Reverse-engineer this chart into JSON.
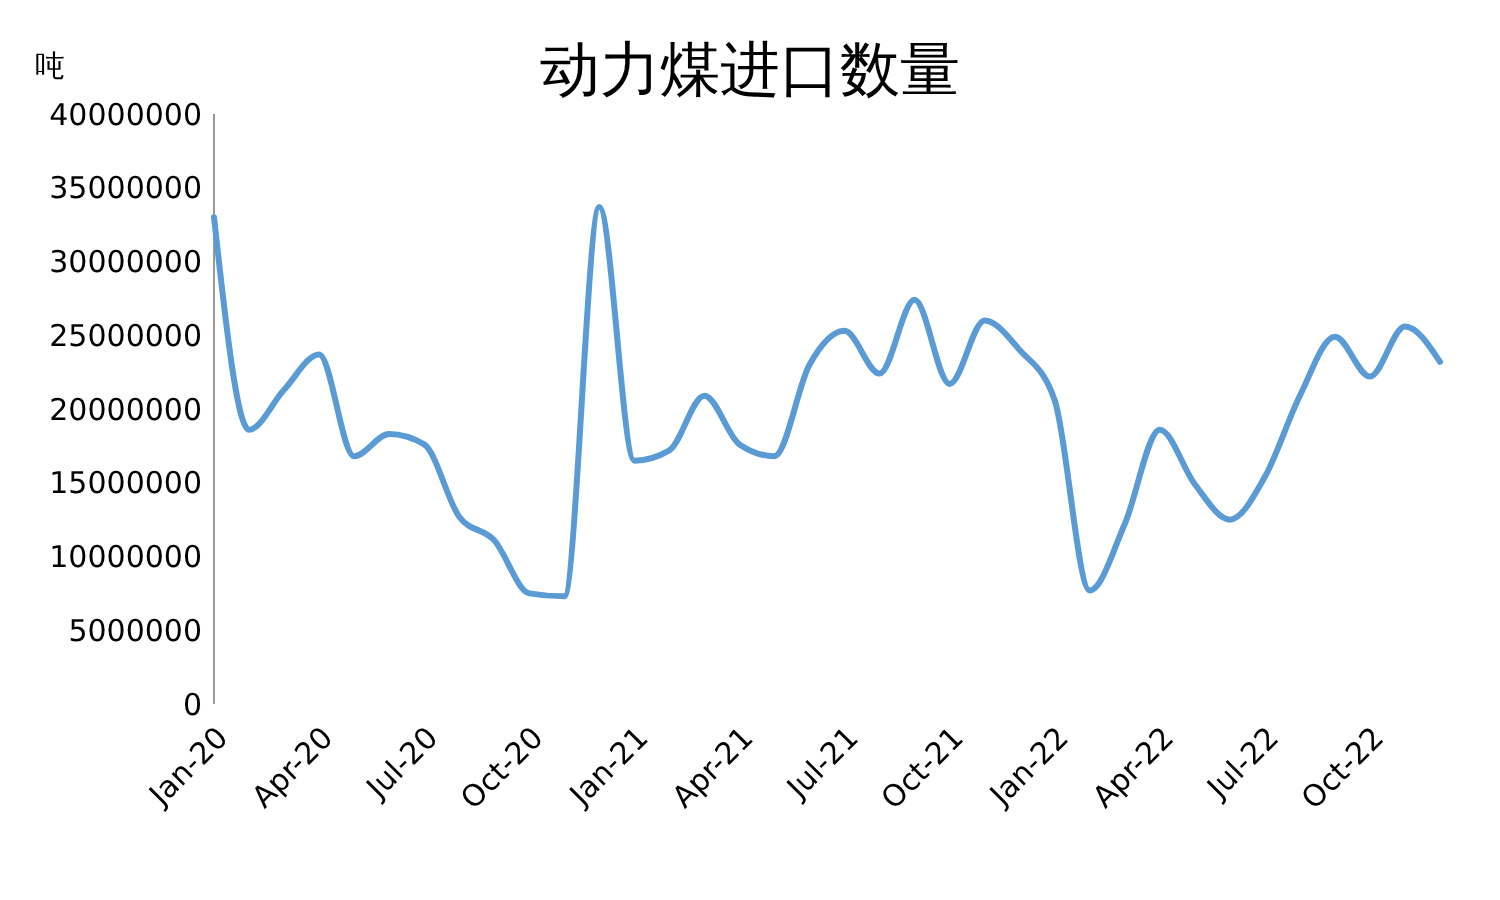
{
  "chart_data": {
    "type": "line",
    "title": "动力煤进口数量",
    "ylabel": "吨",
    "categories": [
      "Jan-20",
      null,
      null,
      "Apr-20",
      null,
      null,
      "Jul-20",
      null,
      null,
      "Oct-20",
      null,
      null,
      "Jan-21",
      null,
      null,
      "Apr-21",
      null,
      null,
      "Jul-21",
      null,
      null,
      "Oct-21",
      null,
      null,
      "Jan-22",
      null,
      null,
      "Apr-22",
      null,
      null,
      "Jul-22",
      null,
      null,
      "Oct-22",
      null,
      null
    ],
    "series": [
      {
        "color": "#5b9bd5",
        "values": [
          33000000,
          18600000,
          21300000,
          23700000,
          16800000,
          18300000,
          17600000,
          12700000,
          11100000,
          7500000,
          7300000,
          33700000,
          16500000,
          17200000,
          20900000,
          17600000,
          16800000,
          23000000,
          25300000,
          22400000,
          27400000,
          21700000,
          26000000,
          24000000,
          20600000,
          7700000,
          12200000,
          18600000,
          14900000,
          12500000,
          15400000,
          20900000,
          24900000,
          22200000,
          25600000,
          23200000
        ]
      }
    ],
    "ylim": [
      0,
      40000000
    ],
    "yticks": [
      0,
      5000000,
      10000000,
      15000000,
      20000000,
      25000000,
      30000000,
      35000000,
      40000000
    ],
    "marker": "none",
    "line_style": "solid"
  }
}
